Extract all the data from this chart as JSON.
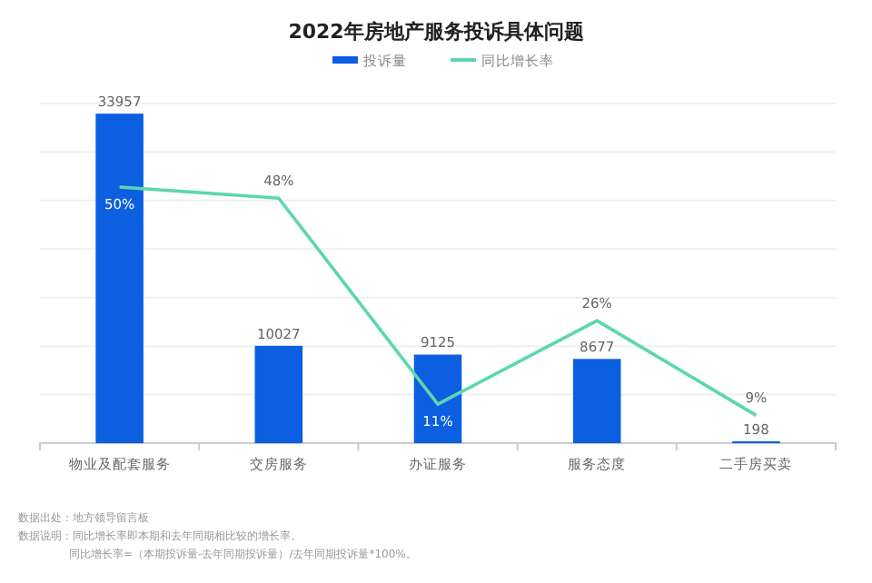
{
  "chart_data": {
    "type": "bar",
    "title": "2022年房地产服务投诉具体问题",
    "categories": [
      "物业及配套服务",
      "交房服务",
      "办证服务",
      "服务态度",
      "二手房买卖"
    ],
    "series": [
      {
        "name": "投诉量",
        "color": "#0b5fe0",
        "values": [
          33957,
          10027,
          9125,
          8677,
          198
        ]
      },
      {
        "name": "同比增长率",
        "type": "line",
        "axis": "y2",
        "color": "#5dd6b0",
        "values": [
          50,
          48,
          11,
          26,
          9
        ],
        "value_labels": [
          "50%",
          "48%",
          "11%",
          "26%",
          "9%"
        ]
      }
    ],
    "ylim": [
      0,
      35000
    ],
    "yticks": [
      {
        "value": 0,
        "label": null
      },
      {
        "value": 5000,
        "label": null
      },
      {
        "value": 10000,
        "label": null
      },
      {
        "value": 15000,
        "label": null
      },
      {
        "value": 20000,
        "label": null
      },
      {
        "value": 25000,
        "label": null
      },
      {
        "value": 30000,
        "label": null
      },
      {
        "value": 35000,
        "label": null
      }
    ],
    "y2lim": [
      4,
      65
    ],
    "tick_labels": "x",
    "grid": "y",
    "legend": "top",
    "data_labels": true,
    "annotations": [
      "数据出处：地方领导留言板",
      "数据说明：同比增长率即本期和去年同期相比较的增长率。",
      "同比增长率=（本期投诉量-去年同期投诉量）/去年同期投诉量*100%。"
    ]
  }
}
